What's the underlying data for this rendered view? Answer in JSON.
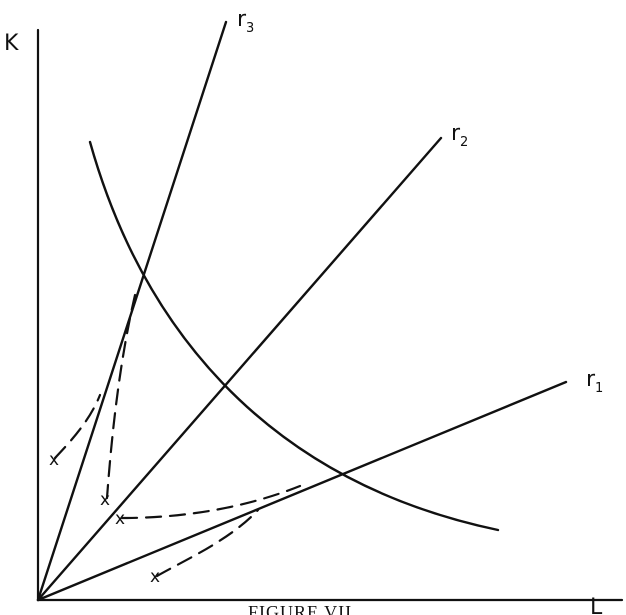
{
  "axes": {
    "y_label": "K",
    "x_label": "L"
  },
  "rays": [
    {
      "label": "r",
      "subscript": "3"
    },
    {
      "label": "r",
      "subscript": "2"
    },
    {
      "label": "r",
      "subscript": "1"
    }
  ],
  "markers": [
    "x",
    "x",
    "x",
    "x"
  ],
  "caption": "FIGURE VII"
}
